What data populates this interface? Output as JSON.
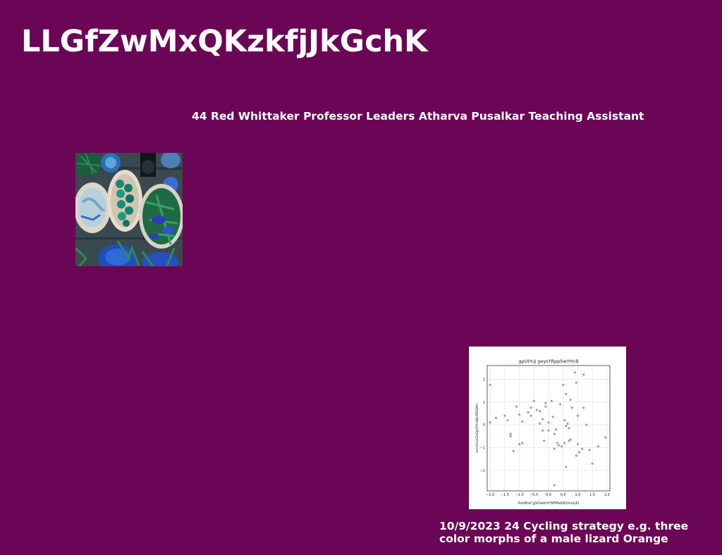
{
  "page": {
    "title": "LLGfZwMxQKzkfjJkGchK",
    "subtitle": "44 Red Whittaker Professor Leaders Atharva Pusalkar Teaching Assistant",
    "caption": "10/9/2023 24 Cycling strategy e.g. three color morphs of a male lizard Orange",
    "background_color": "#6b0555"
  },
  "photo": {
    "icon": "food-bowls-photo"
  },
  "chart_data": {
    "type": "scatter",
    "title": "gpUtYuJ geysYRppSwYHcB",
    "xlabel": "lhoWxCgVUekhYSPMxKKUnvLKl",
    "ylabel": "arrnVUueZoEjJHTKLWjUMZdWri",
    "xlim": [
      -2.1,
      2.1
    ],
    "ylim": [
      -2.9,
      2.6
    ],
    "xticks": [
      "−2.0",
      "−1.5",
      "−1.0",
      "−0.5",
      "0.0",
      "0.5",
      "1.0",
      "1.5",
      "2.0"
    ],
    "xtick_values": [
      -2.0,
      -1.5,
      -1.0,
      -0.5,
      0.0,
      0.5,
      1.0,
      1.5,
      2.0
    ],
    "yticks": [
      "2",
      "1",
      "0",
      "−1",
      "−2"
    ],
    "ytick_values": [
      2,
      1,
      0,
      -1,
      -2
    ],
    "grid": true,
    "point_color": "#b49a8e",
    "points": [
      [
        -2.0,
        1.75
      ],
      [
        -2.0,
        0.1
      ],
      [
        -1.8,
        0.3
      ],
      [
        -1.5,
        0.4
      ],
      [
        -1.4,
        0.2
      ],
      [
        -1.3,
        -0.4
      ],
      [
        -1.3,
        -0.5
      ],
      [
        -1.2,
        -1.15
      ],
      [
        -1.1,
        0.8
      ],
      [
        -1.0,
        -0.85
      ],
      [
        -1.0,
        0.45
      ],
      [
        -0.9,
        -0.8
      ],
      [
        -0.9,
        0.15
      ],
      [
        -0.7,
        0.55
      ],
      [
        -0.6,
        0.75
      ],
      [
        -0.6,
        0.4
      ],
      [
        -0.5,
        1.05
      ],
      [
        -0.4,
        0.65
      ],
      [
        -0.3,
        0.6
      ],
      [
        -0.3,
        0.05
      ],
      [
        -0.2,
        0.25
      ],
      [
        -0.2,
        -0.25
      ],
      [
        -0.15,
        -0.7
      ],
      [
        -0.1,
        0.95
      ],
      [
        -0.1,
        0.8
      ],
      [
        0.0,
        0.1
      ],
      [
        0.0,
        -0.25
      ],
      [
        0.1,
        1.05
      ],
      [
        0.15,
        0.35
      ],
      [
        0.2,
        -0.4
      ],
      [
        0.2,
        -1.05
      ],
      [
        0.25,
        -0.2
      ],
      [
        0.3,
        -0.8
      ],
      [
        0.35,
        -0.9
      ],
      [
        0.4,
        0.9
      ],
      [
        0.45,
        -0.95
      ],
      [
        0.5,
        1.75
      ],
      [
        0.55,
        0.2
      ],
      [
        0.55,
        -0.8
      ],
      [
        0.6,
        1.35
      ],
      [
        0.6,
        -0.05
      ],
      [
        0.6,
        -1.85
      ],
      [
        0.65,
        0.05
      ],
      [
        0.7,
        -0.15
      ],
      [
        0.7,
        -0.7
      ],
      [
        0.75,
        -0.65
      ],
      [
        0.75,
        1.1
      ],
      [
        0.8,
        0.75
      ],
      [
        0.9,
        2.3
      ],
      [
        0.95,
        1.85
      ],
      [
        0.95,
        -1.35
      ],
      [
        1.0,
        0.4
      ],
      [
        1.0,
        -0.85
      ],
      [
        1.05,
        -1.2
      ],
      [
        1.15,
        -1.05
      ],
      [
        1.2,
        2.2
      ],
      [
        1.2,
        0.75
      ],
      [
        1.3,
        0.0
      ],
      [
        1.4,
        -1.1
      ],
      [
        1.5,
        -1.7
      ],
      [
        1.7,
        -0.95
      ],
      [
        1.95,
        -0.55
      ],
      [
        0.2,
        -2.65
      ]
    ]
  }
}
